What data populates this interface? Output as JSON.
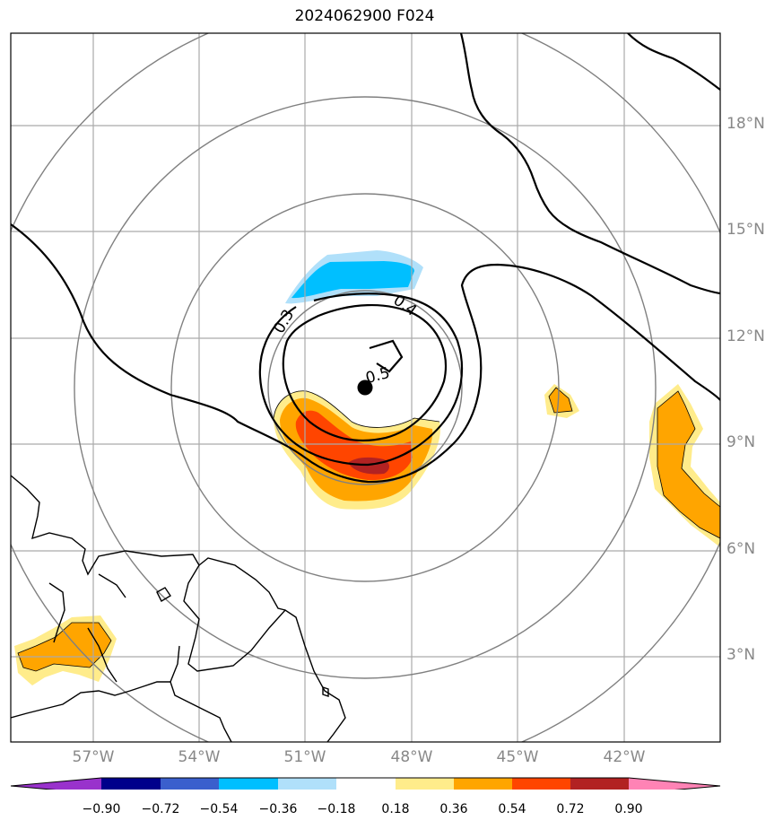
{
  "title": "2024062900 F024",
  "lat_labels": [
    "18°N",
    "15°N",
    "12°N",
    "9°N",
    "6°N",
    "3°N"
  ],
  "lon_labels": [
    "57°W",
    "54°W",
    "51°W",
    "48°W",
    "45°W",
    "42°W"
  ],
  "contour_labels": [
    "0.3",
    "0.4",
    "0.5"
  ],
  "colorbar": {
    "tick_labels": [
      "−0.90",
      "−0.72",
      "−0.54",
      "−0.36",
      "−0.18",
      "0.18",
      "0.36",
      "0.54",
      "0.72",
      "0.90"
    ],
    "colors": [
      "#9932cc",
      "#00008b",
      "#3a5fcd",
      "#00bfff",
      "#b0e0fa",
      "#ffffff",
      "#ffec8b",
      "#ffa500",
      "#ff4500",
      "#b22222",
      "#ff83b5"
    ]
  },
  "map_extent": {
    "lon": [
      -59.3,
      -39.3
    ],
    "lat": [
      0.7,
      20.7
    ]
  },
  "storm_center": {
    "lon": -49.3,
    "lat": 10.6
  },
  "colors": {
    "grid": "#aaaaaa",
    "range_rings": "#808080",
    "contours": "#000000",
    "coast": "#000000",
    "center_marker": "#000000"
  }
}
